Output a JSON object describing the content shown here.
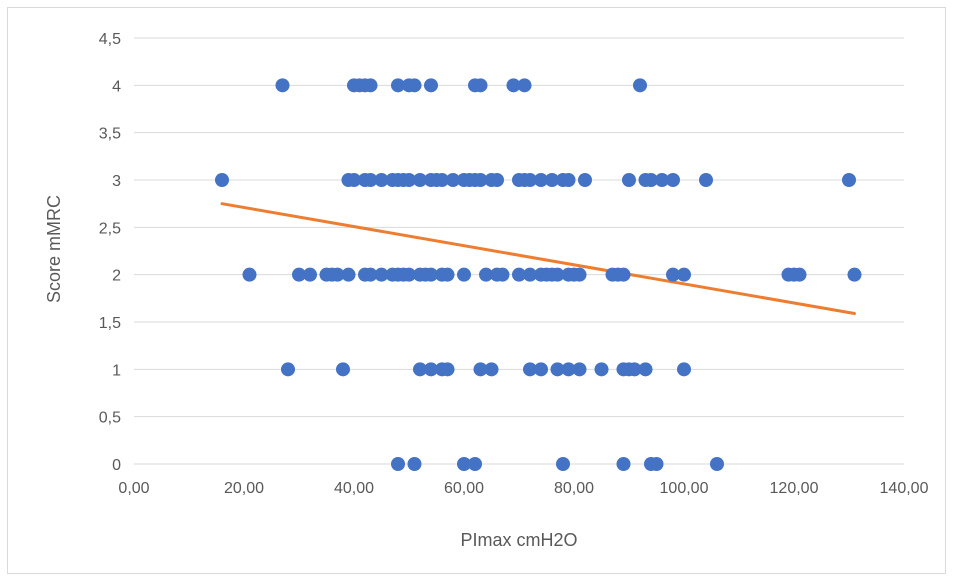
{
  "chart_data": {
    "type": "scatter",
    "title": "",
    "xlabel": "PImax cmH2O",
    "ylabel": "Score mMRC",
    "xlim": [
      0,
      140
    ],
    "ylim": [
      0,
      4.5
    ],
    "x_ticks": [
      0,
      20,
      40,
      60,
      80,
      100,
      120,
      140
    ],
    "y_ticks": [
      0,
      0.5,
      1,
      1.5,
      2,
      2.5,
      3,
      3.5,
      4,
      4.5
    ],
    "x_tick_labels": [
      "0,00",
      "20,00",
      "40,00",
      "60,00",
      "80,00",
      "100,00",
      "120,00",
      "140,00"
    ],
    "y_tick_labels": [
      "0",
      "0,5",
      "1",
      "1,5",
      "2",
      "2,5",
      "3",
      "3,5",
      "4",
      "4,5"
    ],
    "grid": "horizontal",
    "legend": "none",
    "colors": {
      "points": "#4472c4",
      "trendline": "#ed7d31",
      "grid": "#d9d9d9",
      "text": "#595959"
    },
    "series": [
      {
        "type": "scatter",
        "points": [
          [
            27,
            4
          ],
          [
            40,
            4
          ],
          [
            41,
            4
          ],
          [
            42,
            4
          ],
          [
            43,
            4
          ],
          [
            48,
            4
          ],
          [
            50,
            4
          ],
          [
            51,
            4
          ],
          [
            54,
            4
          ],
          [
            62,
            4
          ],
          [
            63,
            4
          ],
          [
            69,
            4
          ],
          [
            71,
            4
          ],
          [
            92,
            4
          ],
          [
            16,
            3
          ],
          [
            39,
            3
          ],
          [
            40,
            3
          ],
          [
            42,
            3
          ],
          [
            43,
            3
          ],
          [
            45,
            3
          ],
          [
            47,
            3
          ],
          [
            48,
            3
          ],
          [
            49,
            3
          ],
          [
            50,
            3
          ],
          [
            52,
            3
          ],
          [
            54,
            3
          ],
          [
            55,
            3
          ],
          [
            56,
            3
          ],
          [
            58,
            3
          ],
          [
            60,
            3
          ],
          [
            61,
            3
          ],
          [
            62,
            3
          ],
          [
            63,
            3
          ],
          [
            65,
            3
          ],
          [
            66,
            3
          ],
          [
            70,
            3
          ],
          [
            71,
            3
          ],
          [
            72,
            3
          ],
          [
            74,
            3
          ],
          [
            76,
            3
          ],
          [
            78,
            3
          ],
          [
            79,
            3
          ],
          [
            82,
            3
          ],
          [
            90,
            3
          ],
          [
            93,
            3
          ],
          [
            94,
            3
          ],
          [
            96,
            3
          ],
          [
            98,
            3
          ],
          [
            104,
            3
          ],
          [
            130,
            3
          ],
          [
            21,
            2
          ],
          [
            30,
            2
          ],
          [
            32,
            2
          ],
          [
            35,
            2
          ],
          [
            36,
            2
          ],
          [
            37,
            2
          ],
          [
            39,
            2
          ],
          [
            42,
            2
          ],
          [
            43,
            2
          ],
          [
            45,
            2
          ],
          [
            47,
            2
          ],
          [
            48,
            2
          ],
          [
            49,
            2
          ],
          [
            50,
            2
          ],
          [
            52,
            2
          ],
          [
            53,
            2
          ],
          [
            54,
            2
          ],
          [
            56,
            2
          ],
          [
            57,
            2
          ],
          [
            60,
            2
          ],
          [
            64,
            2
          ],
          [
            66,
            2
          ],
          [
            67,
            2
          ],
          [
            70,
            2
          ],
          [
            72,
            2
          ],
          [
            74,
            2
          ],
          [
            75,
            2
          ],
          [
            76,
            2
          ],
          [
            77,
            2
          ],
          [
            79,
            2
          ],
          [
            80,
            2
          ],
          [
            81,
            2
          ],
          [
            87,
            2
          ],
          [
            88,
            2
          ],
          [
            89,
            2
          ],
          [
            98,
            2
          ],
          [
            100,
            2
          ],
          [
            119,
            2
          ],
          [
            120,
            2
          ],
          [
            121,
            2
          ],
          [
            131,
            2
          ],
          [
            28,
            1
          ],
          [
            38,
            1
          ],
          [
            52,
            1
          ],
          [
            54,
            1
          ],
          [
            56,
            1
          ],
          [
            57,
            1
          ],
          [
            63,
            1
          ],
          [
            65,
            1
          ],
          [
            72,
            1
          ],
          [
            74,
            1
          ],
          [
            77,
            1
          ],
          [
            79,
            1
          ],
          [
            81,
            1
          ],
          [
            85,
            1
          ],
          [
            89,
            1
          ],
          [
            90,
            1
          ],
          [
            91,
            1
          ],
          [
            93,
            1
          ],
          [
            100,
            1
          ],
          [
            48,
            0
          ],
          [
            51,
            0
          ],
          [
            60,
            0
          ],
          [
            62,
            0
          ],
          [
            78,
            0
          ],
          [
            89,
            0
          ],
          [
            94,
            0
          ],
          [
            95,
            0
          ],
          [
            106,
            0
          ]
        ]
      },
      {
        "type": "linear-trendline",
        "x": [
          16,
          131
        ],
        "y": [
          2.75,
          1.59
        ]
      }
    ]
  }
}
